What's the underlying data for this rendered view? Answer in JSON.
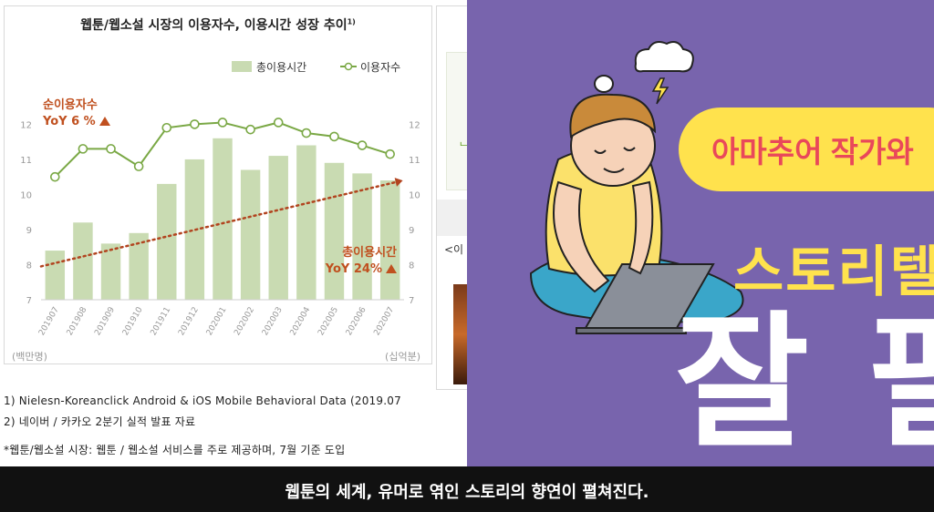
{
  "chart_data": {
    "type": "bar",
    "title": "웹툰/웹소설 시장의 이용자수, 이용시간 성장 추이",
    "title_footnote": "1)",
    "categories": [
      "201907",
      "201908",
      "201909",
      "201910",
      "201911",
      "201912",
      "202001",
      "202002",
      "202003",
      "202004",
      "202005",
      "202006",
      "202007"
    ],
    "series": [
      {
        "name": "총이용시간",
        "type": "bar",
        "axis": "right",
        "values": [
          8.4,
          9.2,
          8.6,
          8.9,
          10.3,
          11.0,
          11.6,
          10.7,
          11.1,
          11.4,
          10.9,
          10.6,
          10.4
        ]
      },
      {
        "name": "이용자수",
        "type": "line",
        "axis": "left",
        "values": [
          10.5,
          11.3,
          11.3,
          10.8,
          11.9,
          12.0,
          12.05,
          11.85,
          12.05,
          11.75,
          11.65,
          11.4,
          11.15
        ]
      }
    ],
    "left_axis": {
      "ticks": [
        7,
        8,
        9,
        10,
        11,
        12
      ],
      "range": [
        7,
        12.4
      ],
      "unit": "(백만명)"
    },
    "right_axis": {
      "ticks": [
        7,
        8,
        9,
        10,
        11,
        12
      ],
      "range": [
        7,
        12.4
      ],
      "unit": "(십억분)"
    },
    "trend_arrow": {
      "from": [
        0,
        7.95
      ],
      "to": [
        12,
        10.35
      ]
    },
    "annotations": [
      {
        "line1": "순이용자수",
        "line2": "YoY 6 %"
      },
      {
        "line1": "총이용시간",
        "line2": "YoY 24%"
      }
    ],
    "legend_position": "top-right",
    "colors": {
      "bar": "#c9dbb2",
      "line": "#7aa845",
      "trend": "#b2441f",
      "annotation": "#c0501f"
    }
  },
  "notes": [
    "1)  Nielesn-Koreanclick Android & iOS Mobile Behavioral Data (2019.07",
    "2)  네이버 / 카카오 2분기 실적 발표 자료",
    "*웹툰/웹소설 시장: 웹툰 / 웹소설 서비스를 주로 제공하며, 7월 기준 도입"
  ],
  "second_panel": {
    "fragment1": "ᄂ",
    "fragment2": "<이"
  },
  "promo": {
    "pill_text": "아마추어 작가와",
    "story_text": "스토리텔",
    "big_text": "잘 팔",
    "colors": {
      "background": "#7864ad",
      "pill": "#ffe24d",
      "pill_text": "#e9485a",
      "story": "#ffe24d",
      "big": "#ffffff"
    }
  },
  "caption": "웹툰의 세계, 유머로 엮인 스토리의 향연이 펼쳐진다."
}
